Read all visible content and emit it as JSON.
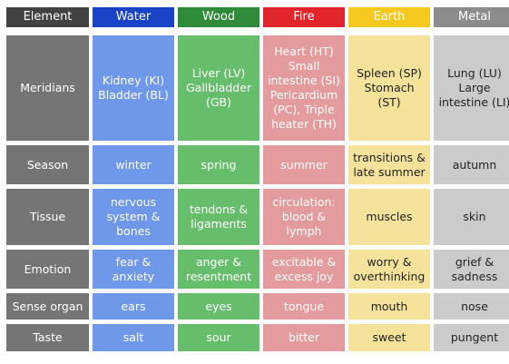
{
  "headers": [
    "Element",
    "Water",
    "Wood",
    "Fire",
    "Earth",
    "Metal"
  ],
  "rows": [
    {
      "label": "Meridians",
      "cells": [
        "Kidney (KI)\nBladder (BL)",
        "Liver (LV)\nGallbladder\n(GB)",
        "Heart (HT)\nSmall\nintestine (SI)\nPericardium\n(PC), Triple\nheater (TH)",
        "Spleen (SP)\nStomach (ST)",
        "Lung (LU)\nLarge\nintestine (LI)"
      ]
    },
    {
      "label": "Season",
      "cells": [
        "winter",
        "spring",
        "summer",
        "transitions &\nlate summer",
        "autumn"
      ]
    },
    {
      "label": "Tissue",
      "cells": [
        "nervous\nsystem &\nbones",
        "tendons &\nligaments",
        "circulation:\nblood &\nlymph",
        "muscles",
        "skin"
      ]
    },
    {
      "label": "Emotion",
      "cells": [
        "fear &\nanxiety",
        "anger &\nresentment",
        "excitable &\nexcess joy",
        "worry &\noverthinking",
        "grief &\nsadness"
      ]
    },
    {
      "label": "Sense organ",
      "cells": [
        "ears",
        "eyes",
        "tongue",
        "mouth",
        "nose"
      ]
    },
    {
      "label": "Taste",
      "cells": [
        "salt",
        "sour",
        "bitter",
        "sweet",
        "pungent"
      ]
    }
  ]
}
